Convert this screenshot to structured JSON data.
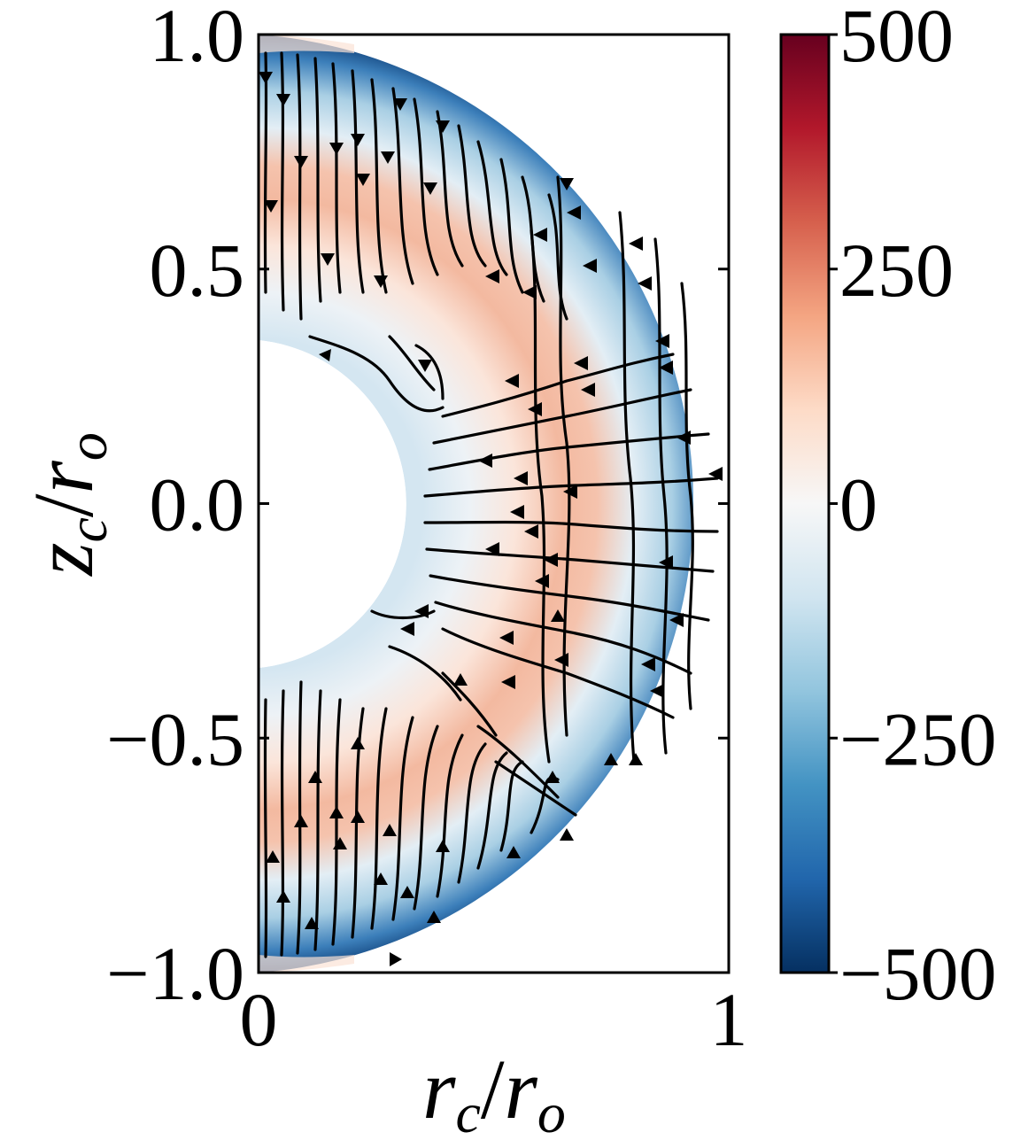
{
  "chart_data": {
    "type": "heatmap",
    "title": "",
    "subtitle": "",
    "description_kind": "meridional half-annulus with streamlines",
    "xlabel": {
      "main": "r",
      "sub": "c",
      "sep": "/",
      "main2": "r",
      "sub2": "o"
    },
    "ylabel": {
      "main": "z",
      "sub": "c",
      "sep": "/",
      "main2": "r",
      "sub2": "o"
    },
    "xlim": [
      0,
      1
    ],
    "ylim": [
      -1,
      1
    ],
    "x_ticks": [
      0,
      1
    ],
    "x_tick_labels": [
      "0",
      "1"
    ],
    "y_ticks": [
      1.0,
      0.5,
      0.0,
      -0.5,
      -1.0
    ],
    "y_tick_labels": [
      "1.0",
      "0.5",
      "0.0",
      "−0.5",
      "−1.0"
    ],
    "domain": {
      "inner_radius": 0.35,
      "outer_radius": 1.0
    },
    "colorbar": {
      "colormap": "RdBu_r",
      "min": -500,
      "max": 500,
      "ticks": [
        500,
        250,
        0,
        -250,
        -500
      ],
      "tick_labels": [
        "500",
        "250",
        "0",
        "−250",
        "−500"
      ],
      "colors": {
        "high": "#67001f",
        "mid_high": "#f4a582",
        "zero": "#f7f7f7",
        "mid_low": "#92c5de",
        "low": "#053061"
      }
    },
    "field_profile": [
      {
        "r": 0.35,
        "value": -80
      },
      {
        "r": 0.45,
        "value": -30
      },
      {
        "r": 0.55,
        "value": 60
      },
      {
        "r": 0.65,
        "value": 150
      },
      {
        "r": 0.72,
        "value": 120
      },
      {
        "r": 0.8,
        "value": -50
      },
      {
        "r": 0.88,
        "value": -250
      },
      {
        "r": 0.95,
        "value": -400
      },
      {
        "r": 1.0,
        "value": -480
      }
    ],
    "grid": false,
    "streamlines": {
      "color": "#000000",
      "arrows": true
    }
  }
}
